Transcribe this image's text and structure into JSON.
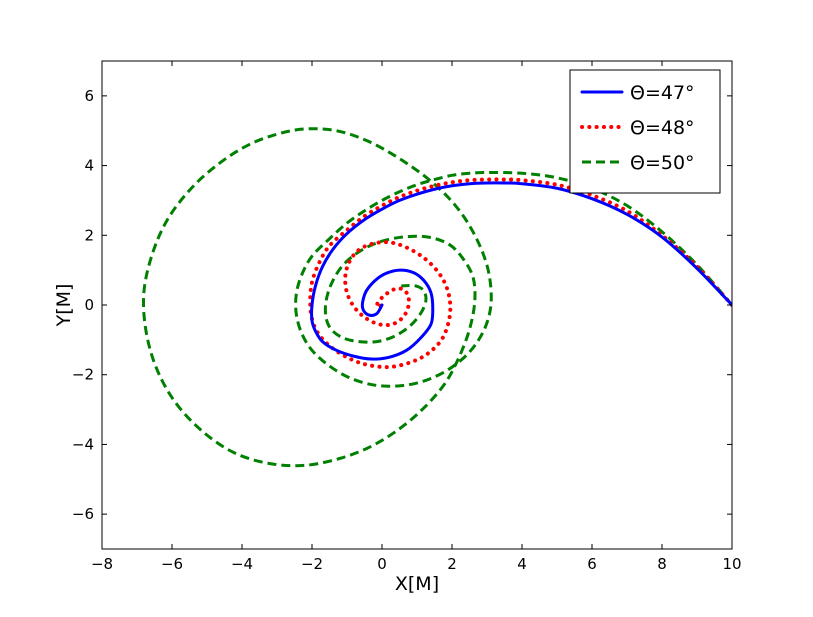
{
  "chart_data": {
    "type": "line",
    "title": "",
    "xlabel": "X[M]",
    "ylabel": "Y[M]",
    "xlim": [
      -8,
      10
    ],
    "ylim": [
      -7,
      7
    ],
    "xticks": [
      -8,
      -6,
      -4,
      -2,
      0,
      2,
      4,
      6,
      8,
      10
    ],
    "yticks": [
      -6,
      -4,
      -2,
      0,
      2,
      4,
      6
    ],
    "xtick_labels": [
      "−8",
      "−6",
      "−4",
      "−2",
      "0",
      "2",
      "4",
      "6",
      "8",
      "10"
    ],
    "ytick_labels": [
      "−6",
      "−4",
      "−2",
      "0",
      "2",
      "4",
      "6"
    ],
    "grid": false,
    "legend_position": "top-right",
    "series": [
      {
        "name": "Θ=47°",
        "color": "#0000ff",
        "style": "solid",
        "x": [
          10.0,
          9.0,
          8.0,
          7.0,
          6.0,
          5.0,
          4.0,
          3.5,
          3.0,
          2.5,
          2.0,
          1.5,
          1.0,
          0.5,
          0.0,
          -0.5,
          -1.0,
          -1.4,
          -1.7,
          -1.9,
          -2.0,
          -2.0,
          -1.9,
          -1.7,
          -1.3,
          -0.8,
          -0.3,
          0.2,
          0.7,
          1.1,
          1.4,
          1.45,
          1.4,
          1.2,
          0.9,
          0.5,
          0.1,
          -0.2,
          -0.45,
          -0.55,
          -0.55,
          -0.45,
          -0.3,
          -0.15,
          -0.05,
          0.0
        ],
        "y": [
          0.0,
          1.05,
          1.95,
          2.6,
          3.05,
          3.35,
          3.48,
          3.5,
          3.5,
          3.48,
          3.42,
          3.32,
          3.18,
          3.0,
          2.75,
          2.45,
          2.05,
          1.6,
          1.1,
          0.55,
          0.0,
          -0.45,
          -0.75,
          -1.05,
          -1.3,
          -1.47,
          -1.55,
          -1.5,
          -1.3,
          -0.95,
          -0.55,
          -0.1,
          0.35,
          0.7,
          0.93,
          1.0,
          0.9,
          0.7,
          0.4,
          0.1,
          -0.1,
          -0.25,
          -0.3,
          -0.25,
          -0.1,
          0.0
        ]
      },
      {
        "name": "Θ=48°",
        "color": "#ff0000",
        "style": "dotted",
        "x": [
          10.0,
          9.0,
          8.0,
          7.0,
          6.0,
          5.0,
          4.0,
          3.5,
          3.0,
          2.5,
          2.0,
          1.5,
          1.0,
          0.5,
          0.0,
          -0.5,
          -1.0,
          -1.5,
          -1.8,
          -2.0,
          -2.05,
          -2.0,
          -1.8,
          -1.4,
          -0.9,
          -0.4,
          0.2,
          0.8,
          1.3,
          1.7,
          1.9,
          1.95,
          1.85,
          1.6,
          1.2,
          0.7,
          0.2,
          -0.3,
          -0.7,
          -0.95,
          -1.05,
          -1.0,
          -0.8,
          -0.5,
          -0.1,
          0.3,
          0.6,
          0.75,
          0.75,
          0.6,
          0.35,
          0.1,
          -0.1,
          -0.15,
          -0.1,
          0.0
        ],
        "y": [
          0.0,
          1.1,
          2.0,
          2.7,
          3.15,
          3.45,
          3.58,
          3.6,
          3.6,
          3.58,
          3.52,
          3.42,
          3.28,
          3.1,
          2.85,
          2.55,
          2.15,
          1.7,
          1.2,
          0.65,
          0.1,
          -0.4,
          -0.85,
          -1.25,
          -1.55,
          -1.72,
          -1.78,
          -1.65,
          -1.4,
          -1.0,
          -0.5,
          0.0,
          0.5,
          0.95,
          1.35,
          1.65,
          1.8,
          1.75,
          1.55,
          1.2,
          0.8,
          0.35,
          -0.05,
          -0.35,
          -0.55,
          -0.55,
          -0.35,
          -0.05,
          0.25,
          0.45,
          0.45,
          0.3,
          0.1,
          -0.05,
          -0.05,
          0.0
        ]
      },
      {
        "name": "Θ=50°",
        "color": "#008000",
        "style": "dashed",
        "x": [
          10.0,
          9.0,
          8.0,
          7.0,
          6.0,
          5.0,
          4.0,
          3.0,
          2.5,
          2.0,
          1.5,
          1.0,
          0.5,
          0.0,
          -0.5,
          -1.0,
          -1.5,
          -2.0,
          -2.3,
          -2.45,
          -2.45,
          -2.3,
          -2.0,
          -1.5,
          -0.9,
          -0.2,
          0.5,
          1.2,
          1.9,
          2.5,
          2.9,
          3.1,
          3.1,
          2.95,
          2.6,
          2.1,
          1.4,
          0.5,
          -0.4,
          -1.3,
          -2.2,
          -3.0,
          -3.8,
          -4.6,
          -5.4,
          -6.1,
          -6.55,
          -6.8,
          -6.75,
          -6.45,
          -5.9,
          -5.1,
          -4.2,
          -3.2,
          -2.2,
          -1.2,
          -0.3,
          0.5,
          1.2,
          1.8,
          2.2,
          2.5,
          2.65,
          2.6,
          2.3,
          1.9,
          1.3,
          0.6,
          -0.1,
          -0.7,
          -1.15,
          -1.45,
          -1.6,
          -1.6,
          -1.45,
          -1.1,
          -0.65,
          -0.15,
          0.35,
          0.8,
          1.1,
          1.25,
          1.2,
          0.95,
          0.55
        ],
        "y": [
          0.0,
          1.15,
          2.1,
          2.85,
          3.35,
          3.65,
          3.78,
          3.8,
          3.78,
          3.72,
          3.6,
          3.45,
          3.25,
          3.0,
          2.7,
          2.35,
          1.9,
          1.4,
          0.85,
          0.3,
          -0.25,
          -0.8,
          -1.3,
          -1.75,
          -2.1,
          -2.3,
          -2.32,
          -2.18,
          -1.85,
          -1.35,
          -0.75,
          -0.1,
          0.6,
          1.3,
          2.1,
          2.85,
          3.55,
          4.2,
          4.7,
          5.0,
          5.05,
          4.9,
          4.6,
          4.1,
          3.4,
          2.5,
          1.5,
          0.4,
          -0.7,
          -1.8,
          -2.8,
          -3.65,
          -4.25,
          -4.55,
          -4.6,
          -4.4,
          -4.05,
          -3.55,
          -2.95,
          -2.25,
          -1.5,
          -0.7,
          0.1,
          0.8,
          1.35,
          1.75,
          1.95,
          1.95,
          1.8,
          1.5,
          1.1,
          0.6,
          0.1,
          -0.35,
          -0.7,
          -0.95,
          -1.05,
          -1.05,
          -0.9,
          -0.6,
          -0.25,
          0.1,
          0.4,
          0.55,
          0.55
        ]
      }
    ]
  }
}
